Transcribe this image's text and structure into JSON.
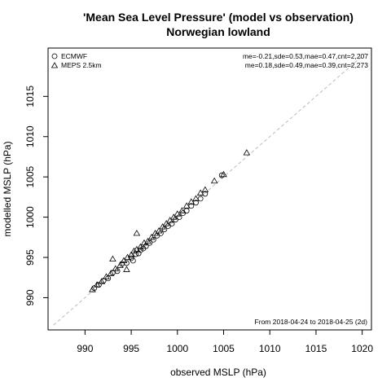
{
  "chart_data": {
    "type": "scatter",
    "title": "'Mean Sea Level Pressure' (model vs observation)",
    "subtitle": "Norwegian lowland",
    "xlabel": "observed MSLP (hPa)",
    "ylabel": "modelled MSLP (hPa)",
    "xlim": [
      986,
      1021
    ],
    "ylim": [
      986,
      1021
    ],
    "xticks": [
      990,
      995,
      1000,
      1005,
      1010,
      1015,
      1020
    ],
    "yticks": [
      990,
      995,
      1000,
      1005,
      1010,
      1015
    ],
    "grid": false,
    "reference_line": "y = x",
    "legend_position": "top-left",
    "series": [
      {
        "name": "ECMWF",
        "marker": "circle",
        "stats": "me=-0.21,sde=0.53,mae=0.47,cnt=2,207",
        "points": [
          [
            991,
            991.2
          ],
          [
            991.5,
            991.6
          ],
          [
            992,
            992.1
          ],
          [
            992.5,
            992.4
          ],
          [
            993,
            993.1
          ],
          [
            993.5,
            993.3
          ],
          [
            994,
            994.2
          ],
          [
            994.5,
            994.3
          ],
          [
            995,
            994.9
          ],
          [
            995.2,
            994.6
          ],
          [
            995.5,
            995.4
          ],
          [
            995.8,
            995.5
          ],
          [
            996,
            995.9
          ],
          [
            996.3,
            996.1
          ],
          [
            996.6,
            996.4
          ],
          [
            997,
            996.8
          ],
          [
            997.4,
            997.2
          ],
          [
            997.8,
            997.7
          ],
          [
            998.2,
            998.0
          ],
          [
            998.6,
            998.5
          ],
          [
            999,
            998.9
          ],
          [
            999.4,
            999.2
          ],
          [
            999.8,
            999.7
          ],
          [
            1000.2,
            1000.0
          ],
          [
            1000.6,
            1000.5
          ],
          [
            1001,
            1000.8
          ],
          [
            1001.5,
            1001.4
          ],
          [
            1002,
            1001.8
          ],
          [
            1002.5,
            1002.3
          ],
          [
            1003,
            1002.9
          ],
          [
            1004.8,
            1005.2
          ]
        ]
      },
      {
        "name": "MEPS 2.5km",
        "marker": "triangle",
        "stats": "me=0.18,sde=0.49,mae=0.39,cnt=2,273",
        "points": [
          [
            990.8,
            991.0
          ],
          [
            991.3,
            991.6
          ],
          [
            991.8,
            992.0
          ],
          [
            992.3,
            992.6
          ],
          [
            992.8,
            993.0
          ],
          [
            993.3,
            993.6
          ],
          [
            993.8,
            994.0
          ],
          [
            994.2,
            994.6
          ],
          [
            994.6,
            995.0
          ],
          [
            995.0,
            995.3
          ],
          [
            995.3,
            995.8
          ],
          [
            995.6,
            996.0
          ],
          [
            996.0,
            996.3
          ],
          [
            996.4,
            996.8
          ],
          [
            996.8,
            997.0
          ],
          [
            997.2,
            997.5
          ],
          [
            997.6,
            998.0
          ],
          [
            998.0,
            998.3
          ],
          [
            998.4,
            998.8
          ],
          [
            998.8,
            999.2
          ],
          [
            999.2,
            999.6
          ],
          [
            999.6,
            1000.0
          ],
          [
            1000.0,
            1000.4
          ],
          [
            1000.5,
            1000.8
          ],
          [
            1001.0,
            1001.4
          ],
          [
            1001.5,
            1001.9
          ],
          [
            1002.0,
            1002.3
          ],
          [
            1002.5,
            1003.0
          ],
          [
            1003.0,
            1003.4
          ],
          [
            1004.0,
            1004.5
          ],
          [
            1005.0,
            1005.3
          ],
          [
            1007.5,
            1008.0
          ],
          [
            993.0,
            994.8
          ],
          [
            995.6,
            998.0
          ],
          [
            994.5,
            993.5
          ]
        ]
      }
    ],
    "annotation": "From 2018-04-24 to 2018-04-25 (2d)"
  },
  "colors": {
    "points": "#000000",
    "reference_line": "#bbbbbb",
    "axis": "#000000"
  }
}
